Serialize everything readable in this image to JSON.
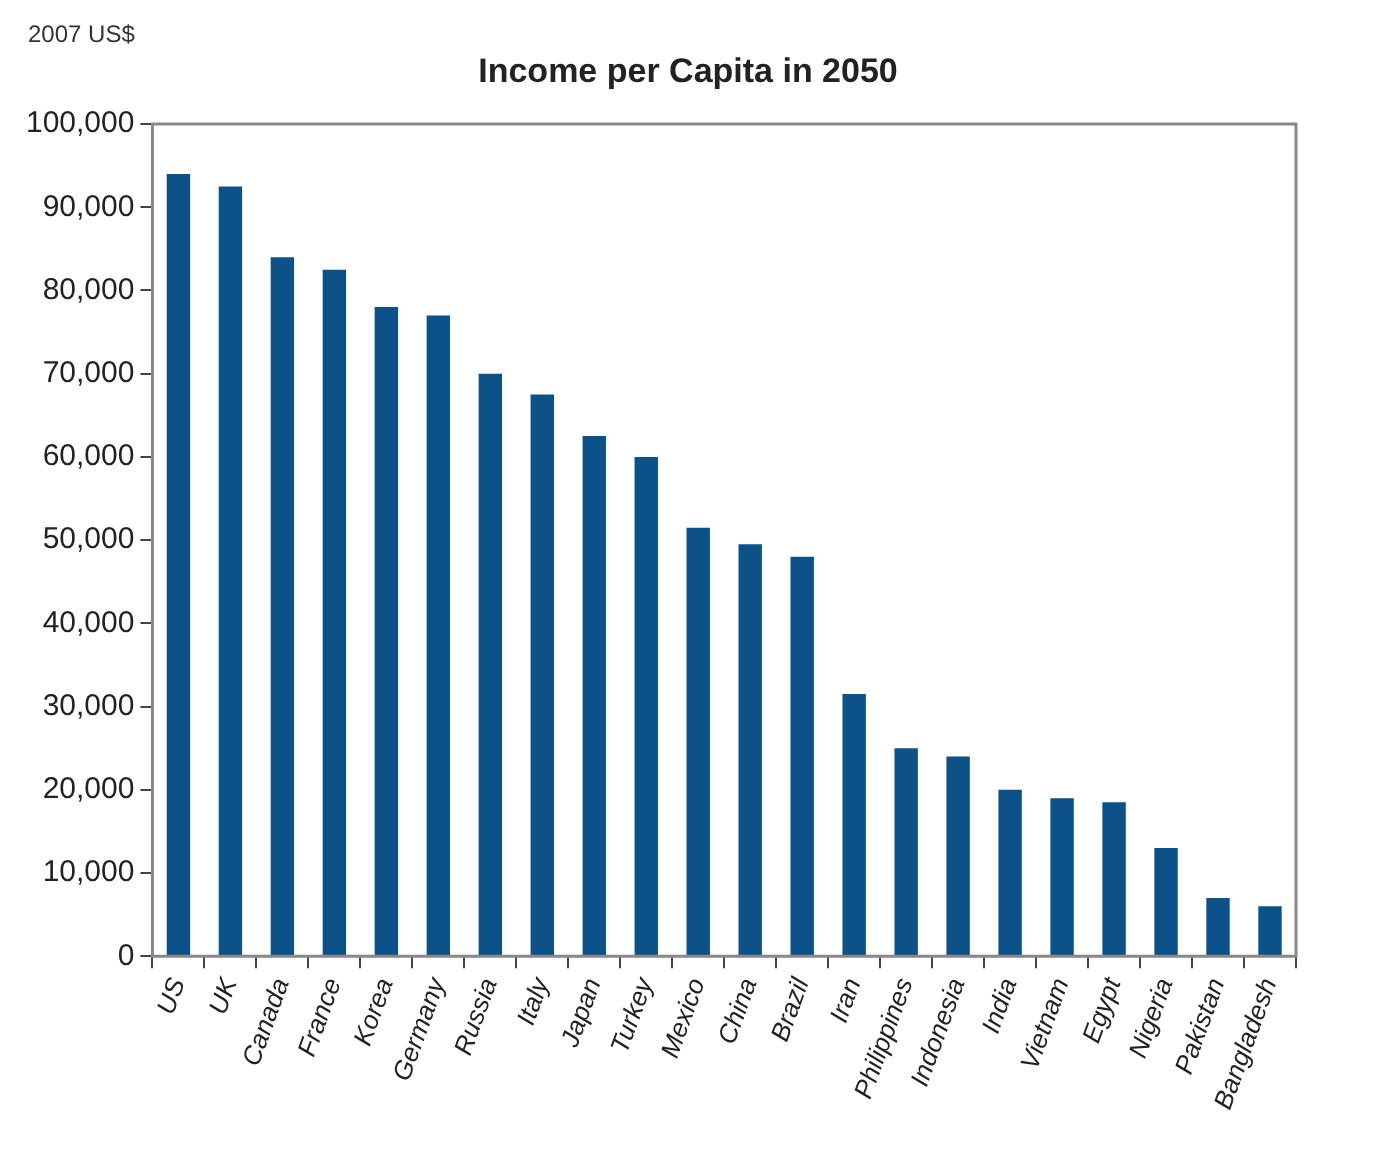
{
  "chart_data": {
    "type": "bar",
    "title": "Income per Capita in 2050",
    "ylabel": "2007 US$",
    "categories": [
      "US",
      "UK",
      "Canada",
      "France",
      "Korea",
      "Germany",
      "Russia",
      "Italy",
      "Japan",
      "Turkey",
      "Mexico",
      "China",
      "Brazil",
      "Iran",
      "Philippines",
      "Indonesia",
      "India",
      "Vietnam",
      "Egypt",
      "Nigeria",
      "Pakistan",
      "Bangladesh"
    ],
    "values": [
      94000,
      92500,
      84000,
      82500,
      78000,
      77000,
      70000,
      67500,
      62500,
      60000,
      51500,
      49500,
      48000,
      31500,
      25000,
      24000,
      20000,
      19000,
      18500,
      13000,
      7000,
      6000
    ],
    "color": "#0d5189",
    "ylim": [
      0,
      100000
    ],
    "yticks": [
      {
        "value": 0,
        "label": "0"
      },
      {
        "value": 10000,
        "label": "10,000"
      },
      {
        "value": 20000,
        "label": "20,000"
      },
      {
        "value": 30000,
        "label": "30,000"
      },
      {
        "value": 40000,
        "label": "40,000"
      },
      {
        "value": 50000,
        "label": "50,000"
      },
      {
        "value": 60000,
        "label": "60,000"
      },
      {
        "value": 70000,
        "label": "70,000"
      },
      {
        "value": 80000,
        "label": "80,000"
      },
      {
        "value": 90000,
        "label": "90,000"
      },
      {
        "value": 100000,
        "label": "100,000"
      }
    ],
    "grid": false,
    "legend": false
  }
}
